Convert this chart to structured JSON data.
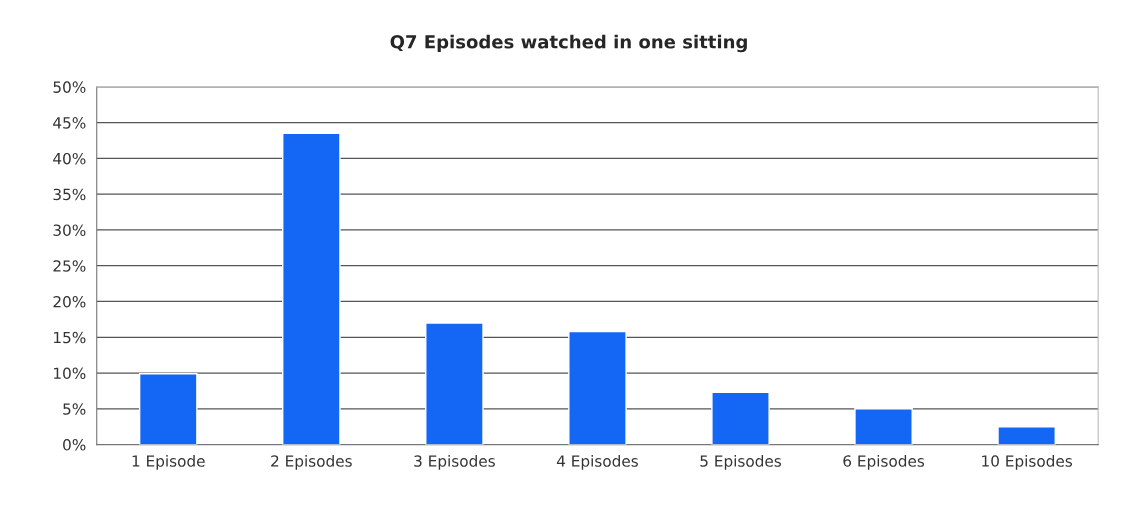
{
  "chart_data": {
    "type": "bar",
    "title": "Q7 Episodes watched in one sitting",
    "categories": [
      "1 Episode",
      "2 Episodes",
      "3 Episodes",
      "4 Episodes",
      "5 Episodes",
      "6 Episodes",
      "10 Episodes"
    ],
    "values": [
      9.9,
      43.5,
      17.0,
      15.8,
      7.3,
      5.0,
      2.5
    ],
    "color": "#1466f5",
    "ylim": [
      0,
      50
    ],
    "yticks": [
      {
        "value": 0,
        "label": "0%"
      },
      {
        "value": 5,
        "label": "5%"
      },
      {
        "value": 10,
        "label": "10%"
      },
      {
        "value": 15,
        "label": "15%"
      },
      {
        "value": 20,
        "label": "20%"
      },
      {
        "value": 25,
        "label": "25%"
      },
      {
        "value": 30,
        "label": "30%"
      },
      {
        "value": 35,
        "label": "35%"
      },
      {
        "value": 40,
        "label": "40%"
      },
      {
        "value": 45,
        "label": "45%"
      },
      {
        "value": 50,
        "label": "50%"
      }
    ],
    "grid": "y",
    "legend": false
  }
}
